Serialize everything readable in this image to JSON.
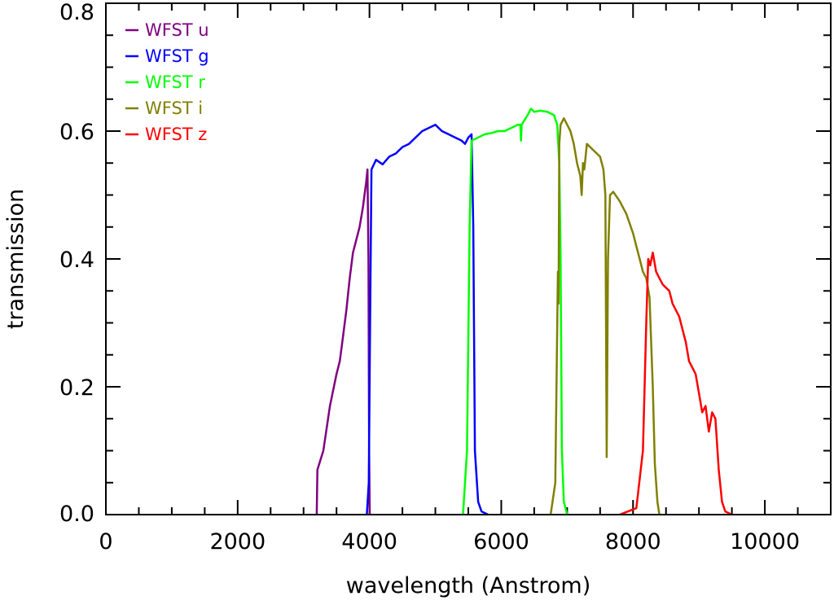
{
  "chart_data": {
    "type": "line",
    "title": "",
    "xlabel": "wavelength (Anstrom)",
    "ylabel": "transmission",
    "xlim": [
      0,
      11000
    ],
    "ylim": [
      0,
      0.8
    ],
    "x_ticks": [
      0,
      2000,
      4000,
      6000,
      8000,
      10000
    ],
    "x_tick_labels": [
      "0",
      "2000",
      "4000",
      "6000",
      "8000",
      "10000"
    ],
    "y_ticks": [
      0.0,
      0.2,
      0.4,
      0.6,
      0.8
    ],
    "y_tick_labels": [
      "0.0",
      "0.2",
      "0.4",
      "0.6",
      "0.8"
    ],
    "x_minor_step": 500,
    "y_minor_step": 0.05,
    "grid": false,
    "legend_position": "top-left",
    "series": [
      {
        "name": "WFST u",
        "color": "#800080",
        "points": [
          [
            3200,
            0.0
          ],
          [
            3210,
            0.07
          ],
          [
            3300,
            0.1
          ],
          [
            3400,
            0.17
          ],
          [
            3500,
            0.22
          ],
          [
            3550,
            0.24
          ],
          [
            3600,
            0.28
          ],
          [
            3650,
            0.32
          ],
          [
            3700,
            0.37
          ],
          [
            3750,
            0.41
          ],
          [
            3800,
            0.43
          ],
          [
            3850,
            0.45
          ],
          [
            3900,
            0.48
          ],
          [
            3950,
            0.52
          ],
          [
            3970,
            0.54
          ],
          [
            3985,
            0.4
          ],
          [
            3995,
            0.1
          ],
          [
            4005,
            0.0
          ]
        ]
      },
      {
        "name": "WFST g",
        "color": "#0000ff",
        "points": [
          [
            3960,
            0.0
          ],
          [
            3990,
            0.05
          ],
          [
            4010,
            0.3
          ],
          [
            4030,
            0.54
          ],
          [
            4100,
            0.555
          ],
          [
            4200,
            0.548
          ],
          [
            4300,
            0.56
          ],
          [
            4400,
            0.565
          ],
          [
            4500,
            0.575
          ],
          [
            4600,
            0.58
          ],
          [
            4700,
            0.59
          ],
          [
            4800,
            0.6
          ],
          [
            4900,
            0.605
          ],
          [
            5000,
            0.61
          ],
          [
            5100,
            0.6
          ],
          [
            5200,
            0.595
          ],
          [
            5300,
            0.59
          ],
          [
            5400,
            0.585
          ],
          [
            5450,
            0.58
          ],
          [
            5500,
            0.59
          ],
          [
            5550,
            0.595
          ],
          [
            5575,
            0.45
          ],
          [
            5600,
            0.1
          ],
          [
            5650,
            0.02
          ],
          [
            5700,
            0.005
          ],
          [
            5800,
            0.0
          ]
        ]
      },
      {
        "name": "WFST r",
        "color": "#00ff00",
        "points": [
          [
            5420,
            0.0
          ],
          [
            5480,
            0.1
          ],
          [
            5520,
            0.45
          ],
          [
            5550,
            0.585
          ],
          [
            5650,
            0.59
          ],
          [
            5750,
            0.595
          ],
          [
            5850,
            0.597
          ],
          [
            5950,
            0.6
          ],
          [
            6050,
            0.6
          ],
          [
            6150,
            0.605
          ],
          [
            6250,
            0.61
          ],
          [
            6290,
            0.61
          ],
          [
            6300,
            0.585
          ],
          [
            6310,
            0.61
          ],
          [
            6400,
            0.625
          ],
          [
            6450,
            0.635
          ],
          [
            6500,
            0.63
          ],
          [
            6600,
            0.632
          ],
          [
            6700,
            0.63
          ],
          [
            6800,
            0.625
          ],
          [
            6850,
            0.61
          ],
          [
            6880,
            0.55
          ],
          [
            6900,
            0.4
          ],
          [
            6920,
            0.1
          ],
          [
            6950,
            0.02
          ],
          [
            7000,
            0.0
          ]
        ]
      },
      {
        "name": "WFST i",
        "color": "#808000",
        "points": [
          [
            6750,
            0.0
          ],
          [
            6820,
            0.05
          ],
          [
            6860,
            0.38
          ],
          [
            6870,
            0.33
          ],
          [
            6880,
            0.58
          ],
          [
            6900,
            0.61
          ],
          [
            6950,
            0.62
          ],
          [
            7000,
            0.61
          ],
          [
            7050,
            0.6
          ],
          [
            7100,
            0.58
          ],
          [
            7150,
            0.55
          ],
          [
            7200,
            0.53
          ],
          [
            7220,
            0.5
          ],
          [
            7240,
            0.55
          ],
          [
            7260,
            0.54
          ],
          [
            7300,
            0.58
          ],
          [
            7400,
            0.57
          ],
          [
            7500,
            0.56
          ],
          [
            7550,
            0.54
          ],
          [
            7580,
            0.5
          ],
          [
            7600,
            0.09
          ],
          [
            7620,
            0.4
          ],
          [
            7650,
            0.5
          ],
          [
            7700,
            0.505
          ],
          [
            7800,
            0.49
          ],
          [
            7900,
            0.47
          ],
          [
            8000,
            0.44
          ],
          [
            8050,
            0.42
          ],
          [
            8100,
            0.4
          ],
          [
            8150,
            0.38
          ],
          [
            8200,
            0.37
          ],
          [
            8250,
            0.34
          ],
          [
            8300,
            0.2
          ],
          [
            8330,
            0.08
          ],
          [
            8370,
            0.02
          ],
          [
            8400,
            0.0
          ]
        ]
      },
      {
        "name": "WFST z",
        "color": "#ff0000",
        "points": [
          [
            7800,
            0.0
          ],
          [
            8050,
            0.01
          ],
          [
            8150,
            0.1
          ],
          [
            8200,
            0.3
          ],
          [
            8230,
            0.4
          ],
          [
            8260,
            0.39
          ],
          [
            8300,
            0.41
          ],
          [
            8350,
            0.38
          ],
          [
            8400,
            0.37
          ],
          [
            8450,
            0.36
          ],
          [
            8500,
            0.355
          ],
          [
            8550,
            0.35
          ],
          [
            8600,
            0.33
          ],
          [
            8700,
            0.31
          ],
          [
            8800,
            0.27
          ],
          [
            8850,
            0.24
          ],
          [
            8900,
            0.23
          ],
          [
            8950,
            0.22
          ],
          [
            9000,
            0.19
          ],
          [
            9050,
            0.16
          ],
          [
            9100,
            0.17
          ],
          [
            9150,
            0.13
          ],
          [
            9200,
            0.16
          ],
          [
            9250,
            0.15
          ],
          [
            9300,
            0.07
          ],
          [
            9350,
            0.02
          ],
          [
            9400,
            0.005
          ],
          [
            9500,
            0.0
          ]
        ]
      }
    ]
  }
}
